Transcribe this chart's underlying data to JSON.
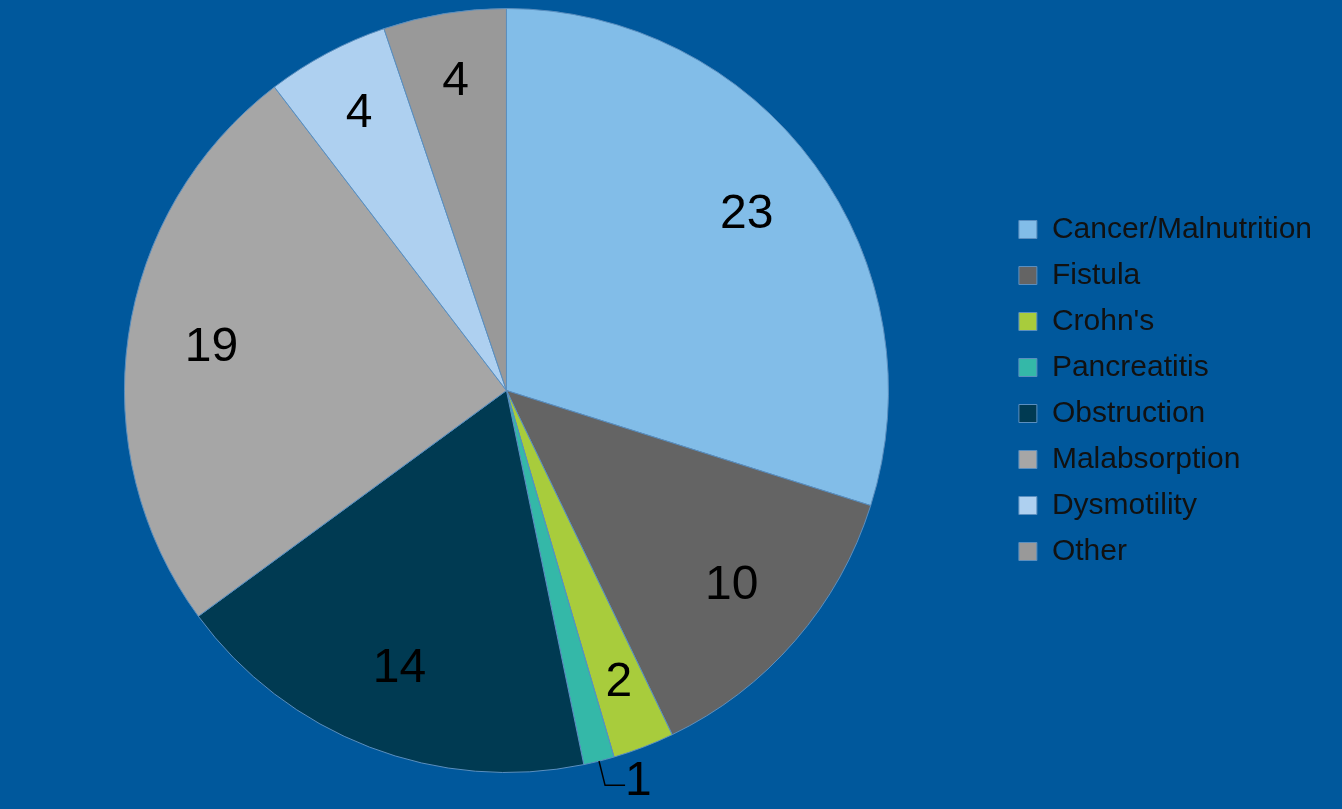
{
  "chart_data": {
    "type": "pie",
    "categories": [
      "Cancer/Malnutrition",
      "Fistula",
      "Crohn's",
      "Pancreatitis",
      "Obstruction",
      "Malabsorption",
      "Dysmotility",
      "Other"
    ],
    "values": [
      23,
      10,
      2,
      1,
      14,
      19,
      4,
      4
    ],
    "colors": [
      "#82bde8",
      "#646464",
      "#a8cc3c",
      "#34b8a8",
      "#003a52",
      "#a6a6a6",
      "#aed0f0",
      "#999999"
    ],
    "data_labels": true,
    "legend": "right"
  }
}
